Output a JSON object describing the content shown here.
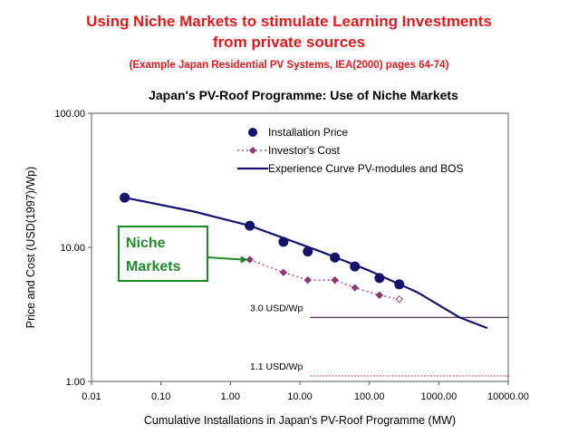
{
  "slide": {
    "title_line1": "Using Niche Markets to stimulate Learning Investments",
    "title_line2": "from private sources",
    "subtitle": "(Example Japan Residential PV Systems, IEA(2000) pages 64-74)"
  },
  "colors": {
    "title": "#e0191b",
    "price": "#14146e",
    "cost": "#8b3a73",
    "curve": "#14146e",
    "callout": "#1f8a2b",
    "ref_3": "#6a2c63",
    "ref_1": "#cc2b78"
  },
  "chart_data": {
    "type": "scatter",
    "title": "Japan's PV-Roof Programme: Use of Niche Markets",
    "xlabel": "Cumulative Installations in Japan's PV-Roof Programme (MW)",
    "ylabel": "Price and Cost (USD(1997)/Wp)",
    "xscale": "log",
    "yscale": "log",
    "xlim": [
      0.01,
      10000
    ],
    "ylim": [
      1,
      100
    ],
    "x_ticks": [
      "0.01",
      "0.10",
      "1.00",
      "10.00",
      "100.00",
      "1000.00",
      "10000.00"
    ],
    "y_ticks": [
      "1.00",
      "10.00",
      "100.00"
    ],
    "legend_position": "top-right",
    "series": [
      {
        "name": "Installation Price",
        "style": "markers",
        "points": [
          [
            0.03,
            23.5
          ],
          [
            1.9,
            14.5
          ],
          [
            5.8,
            11.0
          ],
          [
            13,
            9.3
          ],
          [
            32,
            8.4
          ],
          [
            62,
            7.2
          ],
          [
            140,
            5.9
          ],
          [
            270,
            5.3
          ]
        ]
      },
      {
        "name": "Investor's Cost",
        "style": "dotted-diamonds",
        "points": [
          [
            1.9,
            8.1
          ],
          [
            5.8,
            6.5
          ],
          [
            13,
            5.7
          ],
          [
            32,
            5.7
          ],
          [
            62,
            5.0
          ],
          [
            140,
            4.4
          ],
          [
            270,
            4.1
          ]
        ]
      },
      {
        "name": "Experience Curve PV-modules and BOS",
        "style": "line",
        "points": [
          [
            0.03,
            23.5
          ],
          [
            0.3,
            18.5
          ],
          [
            1.9,
            14.5
          ],
          [
            20,
            9.3
          ],
          [
            100,
            6.7
          ],
          [
            500,
            4.6
          ],
          [
            2000,
            3.0
          ],
          [
            5000,
            2.5
          ]
        ]
      }
    ],
    "reference_lines": [
      {
        "label": "3.0 USD/Wp",
        "y": 3.0,
        "x_from": 14,
        "x_to": 10000,
        "style": "solid"
      },
      {
        "label": "1.1 USD/Wp",
        "y": 1.1,
        "x_from": 14,
        "x_to": 10000,
        "style": "dotted"
      }
    ],
    "annotations": [
      {
        "text_lines": [
          "Niche",
          "Markets"
        ],
        "arrow_to": [
          1.9,
          8.1
        ]
      }
    ]
  }
}
